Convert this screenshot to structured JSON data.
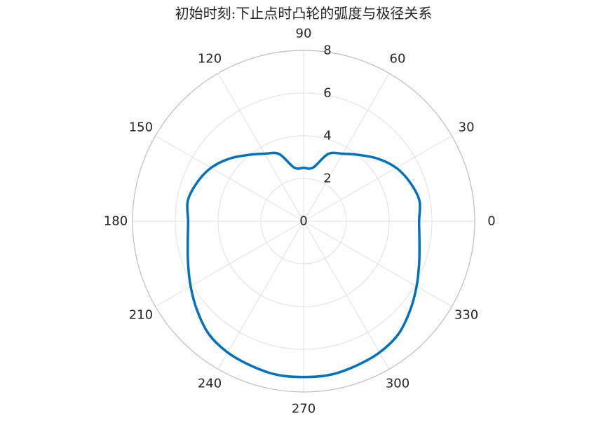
{
  "chart_data": {
    "type": "line",
    "projection": "polar",
    "title": "初始时刻:下止点时凸轮的弧度与极径关系",
    "theta_unit": "degrees",
    "theta_ticks": [
      0,
      30,
      60,
      90,
      120,
      150,
      180,
      210,
      240,
      270,
      300,
      330
    ],
    "theta_tick_labels": [
      "0",
      "30",
      "60",
      "90",
      "120",
      "150",
      "180",
      "210",
      "240",
      "270",
      "300",
      "330"
    ],
    "r_lim": [
      0,
      8
    ],
    "r_ticks": [
      0,
      2,
      4,
      6,
      8
    ],
    "r_tick_labels": [
      "0",
      "2",
      "4",
      "6",
      "8"
    ],
    "grid": true,
    "series": [
      {
        "color": "#0072BD",
        "points": [
          {
            "theta": 0,
            "r": 5.4
          },
          {
            "theta": 10,
            "r": 5.5
          },
          {
            "theta": 20,
            "r": 5.3
          },
          {
            "theta": 30,
            "r": 5.0
          },
          {
            "theta": 40,
            "r": 4.55
          },
          {
            "theta": 50,
            "r": 4.05
          },
          {
            "theta": 60,
            "r": 3.65
          },
          {
            "theta": 70,
            "r": 3.35
          },
          {
            "theta": 80,
            "r": 2.55
          },
          {
            "theta": 90,
            "r": 2.5
          },
          {
            "theta": 100,
            "r": 2.55
          },
          {
            "theta": 110,
            "r": 3.35
          },
          {
            "theta": 120,
            "r": 3.65
          },
          {
            "theta": 130,
            "r": 4.05
          },
          {
            "theta": 140,
            "r": 4.55
          },
          {
            "theta": 150,
            "r": 5.0
          },
          {
            "theta": 160,
            "r": 5.3
          },
          {
            "theta": 170,
            "r": 5.5
          },
          {
            "theta": 180,
            "r": 5.4
          },
          {
            "theta": 190,
            "r": 5.5
          },
          {
            "theta": 200,
            "r": 5.75
          },
          {
            "theta": 210,
            "r": 6.1
          },
          {
            "theta": 220,
            "r": 6.5
          },
          {
            "theta": 230,
            "r": 6.9
          },
          {
            "theta": 240,
            "r": 7.1
          },
          {
            "theta": 250,
            "r": 7.2
          },
          {
            "theta": 260,
            "r": 7.3
          },
          {
            "theta": 270,
            "r": 7.3
          },
          {
            "theta": 280,
            "r": 7.3
          },
          {
            "theta": 290,
            "r": 7.2
          },
          {
            "theta": 300,
            "r": 7.1
          },
          {
            "theta": 310,
            "r": 6.9
          },
          {
            "theta": 320,
            "r": 6.5
          },
          {
            "theta": 330,
            "r": 6.1
          },
          {
            "theta": 340,
            "r": 5.75
          },
          {
            "theta": 350,
            "r": 5.5
          },
          {
            "theta": 360,
            "r": 5.4
          }
        ]
      }
    ]
  }
}
